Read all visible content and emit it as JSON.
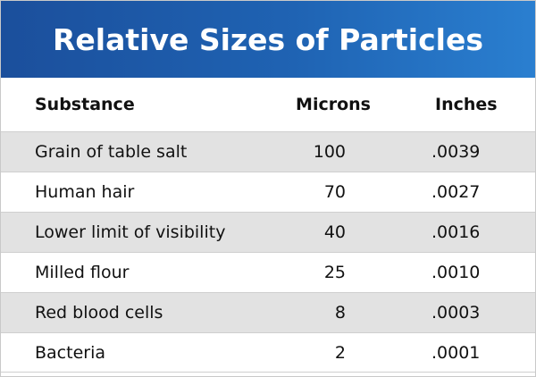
{
  "chart_data": {
    "type": "table",
    "title": "Relative Sizes of Particles",
    "columns": [
      "Substance",
      "Microns",
      "Inches"
    ],
    "rows": [
      {
        "substance": "Grain of table salt",
        "microns": "100",
        "inches": ".0039"
      },
      {
        "substance": "Human hair",
        "microns": "70",
        "inches": ".0027"
      },
      {
        "substance": "Lower limit of visibility",
        "microns": "40",
        "inches": ".0016"
      },
      {
        "substance": "Milled flour",
        "microns": "25",
        "inches": ".0010"
      },
      {
        "substance": "Red blood cells",
        "microns": "8",
        "inches": ".0003"
      },
      {
        "substance": "Bacteria",
        "microns": "2",
        "inches": ".0001"
      }
    ]
  },
  "colors": {
    "title_bg_start": "#1b4f9c",
    "title_bg_end": "#2a7fd0",
    "title_text": "#ffffff",
    "shaded_row": "#e2e2e2"
  }
}
